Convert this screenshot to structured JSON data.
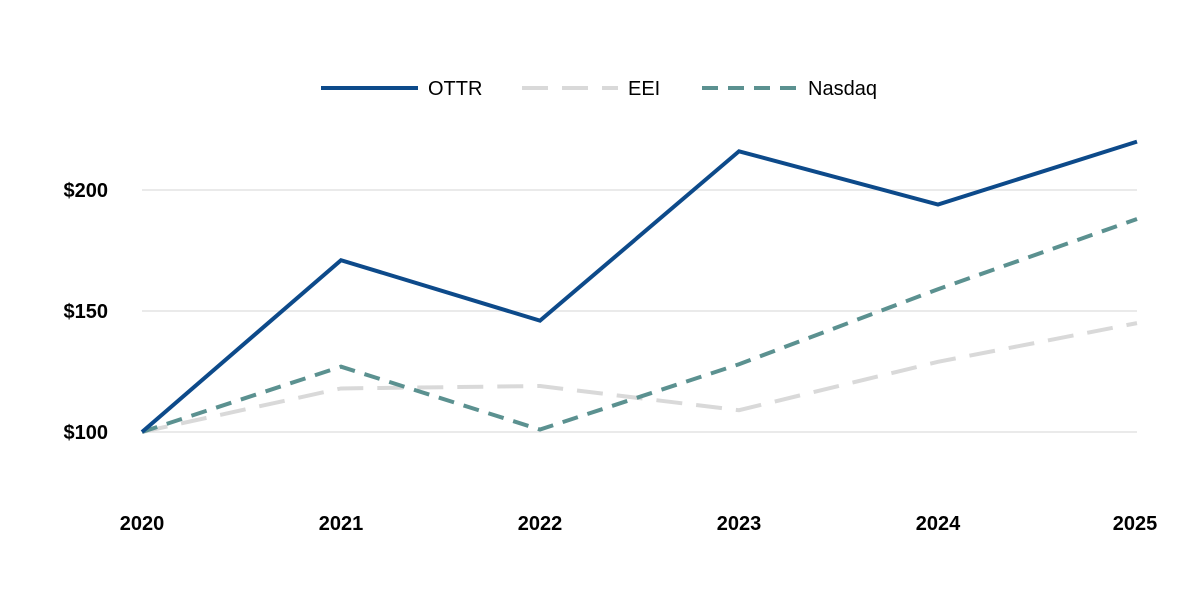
{
  "chart_data": {
    "type": "line",
    "title": "",
    "xlabel": "",
    "ylabel": "",
    "categories": [
      "2020",
      "2021",
      "2022",
      "2023",
      "2024",
      "2025"
    ],
    "series": [
      {
        "name": "OTTR",
        "values": [
          100,
          171,
          146,
          216,
          194,
          220
        ],
        "color": "#0d4a8a",
        "style": "solid"
      },
      {
        "name": "EEI",
        "values": [
          100,
          118,
          119,
          109,
          129,
          145
        ],
        "color": "#d9d9d9",
        "style": "dashed"
      },
      {
        "name": "Nasdaq",
        "values": [
          100,
          127,
          101,
          128,
          159,
          188
        ],
        "color": "#5b9190",
        "style": "dashed"
      }
    ],
    "y_ticks": [
      100,
      150,
      200
    ],
    "y_tick_labels": [
      "$100",
      "$150",
      "$200"
    ],
    "ylim": [
      100,
      200
    ],
    "grid": true,
    "legend_position": "top-center"
  }
}
